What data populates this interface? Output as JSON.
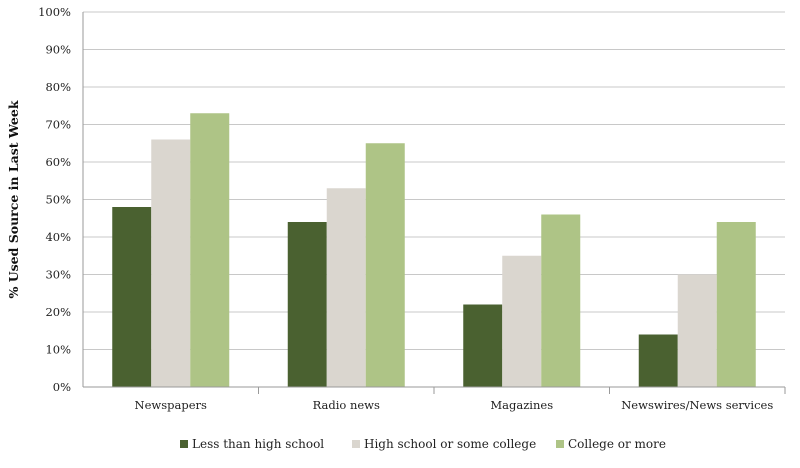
{
  "chart_data": {
    "type": "bar",
    "categories": [
      "Newspapers",
      "Radio news",
      "Magazines",
      "Newswires/News services"
    ],
    "series": [
      {
        "name": "Less than high school",
        "values": [
          48,
          44,
          22,
          14
        ],
        "color": "#4a6130"
      },
      {
        "name": "High school or some college",
        "values": [
          66,
          53,
          35,
          30
        ],
        "color": "#dad6cf"
      },
      {
        "name": "College or more",
        "values": [
          73,
          65,
          46,
          44
        ],
        "color": "#aec486"
      }
    ],
    "title": "",
    "xlabel": "",
    "ylabel": "% Used Source in Last Week",
    "ylim": [
      0,
      100
    ],
    "yticks": [
      0,
      10,
      20,
      30,
      40,
      50,
      60,
      70,
      80,
      90,
      100
    ],
    "ytick_labels": [
      "0%",
      "10%",
      "20%",
      "30%",
      "40%",
      "50%",
      "60%",
      "70%",
      "80%",
      "90%",
      "100%"
    ],
    "grid": true,
    "legend_position": "bottom"
  }
}
